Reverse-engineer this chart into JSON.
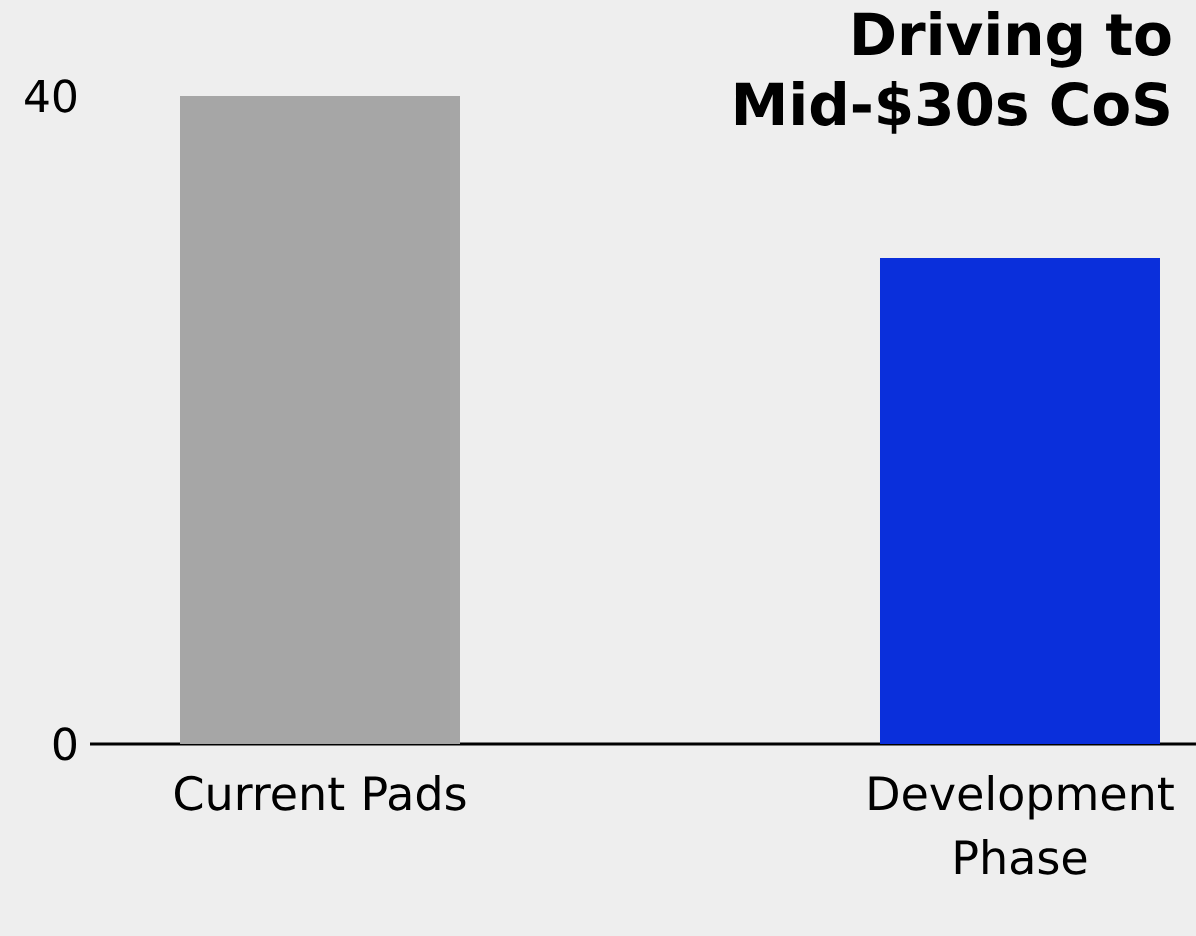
{
  "chart_data": {
    "type": "bar",
    "title": "Driving to Mid-$30s CoS",
    "categories": [
      "Current Pads",
      "Development Phase"
    ],
    "values": [
      40,
      30
    ],
    "colors": [
      "#a6a6a6",
      "#0a2fdb"
    ],
    "ylim": [
      0,
      40
    ],
    "yticks": [
      0,
      40
    ]
  }
}
